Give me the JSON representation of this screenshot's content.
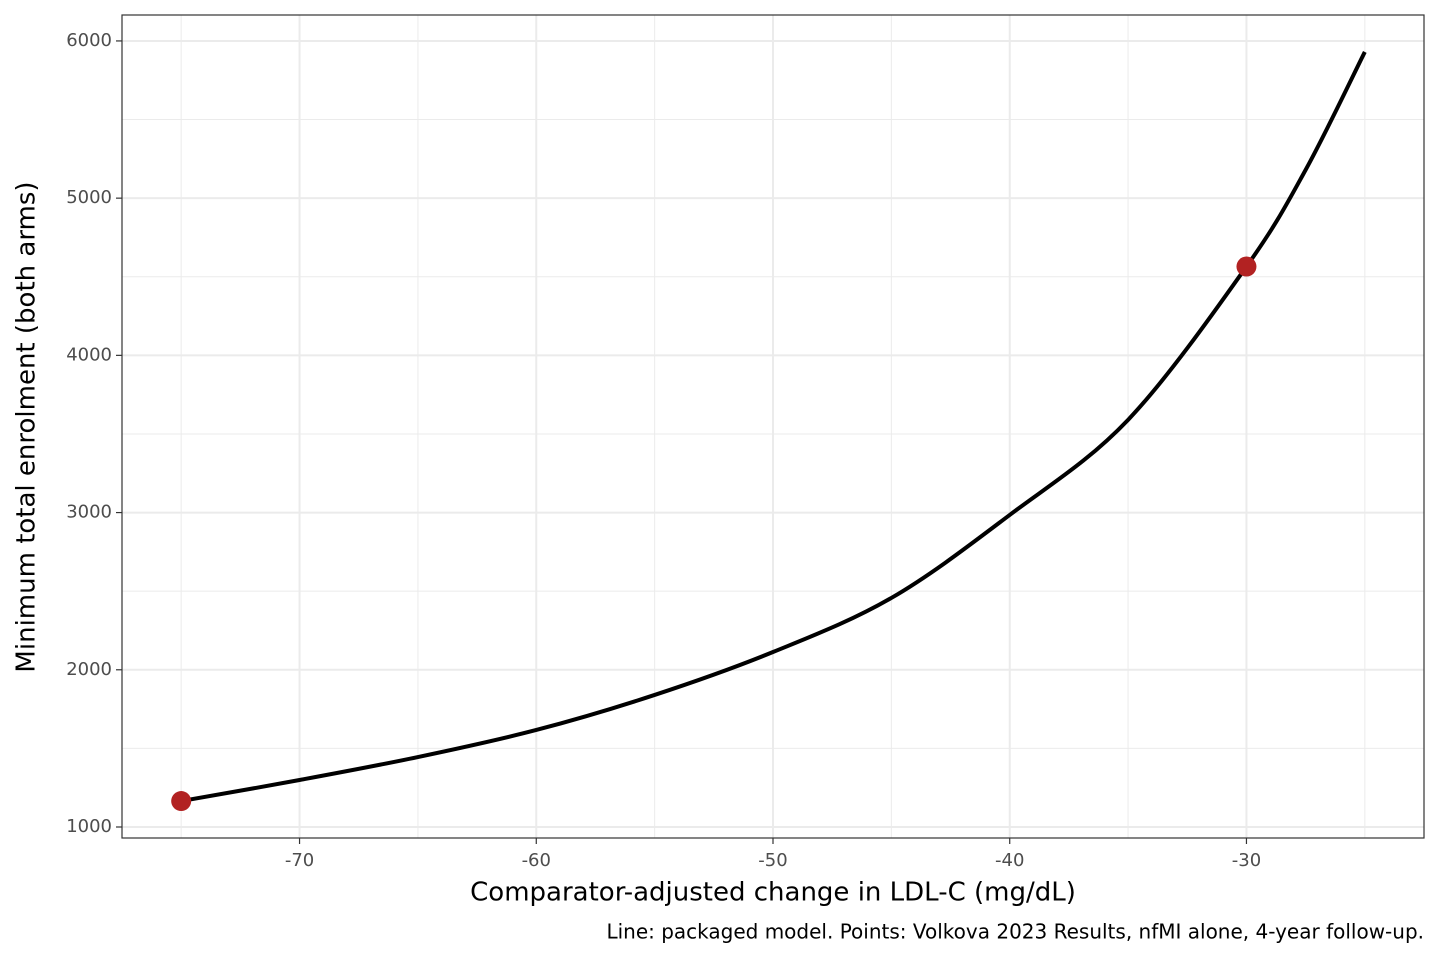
{
  "chart_data": {
    "type": "line",
    "x_label": "Comparator-adjusted change in LDL-C (mg/dL)",
    "y_label": "Minimum total enrolment (both arms)",
    "caption": "Line: packaged model. Points: Volkova 2023 Results, nfMI alone, 4-year follow-up.",
    "xlim": [
      -77.5,
      -22.5
    ],
    "ylim": [
      930,
      6165
    ],
    "xticks": [
      -70,
      -60,
      -50,
      -40,
      -30
    ],
    "yticks": [
      1000,
      2000,
      3000,
      4000,
      5000,
      6000
    ],
    "x_minor_grid": [
      -75,
      -65,
      -55,
      -45,
      -35,
      -25
    ],
    "y_minor_grid": [
      1500,
      2500,
      3500,
      4500,
      5500
    ],
    "grid": true,
    "series": [
      {
        "type": "line",
        "color": "#000000",
        "x": [
          -75,
          -70,
          -65,
          -60,
          -55,
          -50,
          -45,
          -40,
          -35,
          -30,
          -27.5,
          -25
        ],
        "values": [
          1165,
          1299,
          1445,
          1617,
          1840,
          2113,
          2457,
          2985,
          3590,
          4565,
          5180,
          5930
        ]
      },
      {
        "type": "scatter",
        "color": "#b22222",
        "x": [
          -75,
          -30
        ],
        "values": [
          1165,
          4565
        ]
      }
    ]
  }
}
